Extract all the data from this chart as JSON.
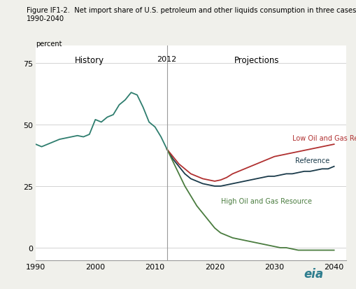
{
  "title_line1": "Figure IF1-2.  Net import share of U.S. petroleum and other liquids consumption in three cases,",
  "title_line2": "1990-2040",
  "ylabel": "percent",
  "history_label": "History",
  "projections_label": "Projections",
  "divider_year": 2012,
  "divider_label": "2012",
  "xlim": [
    1990,
    2042
  ],
  "ylim": [
    -5,
    82
  ],
  "yticks": [
    0,
    25,
    50,
    75
  ],
  "xticks": [
    1990,
    2000,
    2010,
    2020,
    2030,
    2040
  ],
  "bg_color": "#f0f0eb",
  "plot_bg_color": "#ffffff",
  "history_color": "#2e7d6e",
  "reference_color": "#1a3a4a",
  "low_color": "#b03030",
  "high_color": "#4a7c3f",
  "history_years": [
    1990,
    1991,
    1992,
    1993,
    1994,
    1995,
    1996,
    1997,
    1998,
    1999,
    2000,
    2001,
    2002,
    2003,
    2004,
    2005,
    2006,
    2007,
    2008,
    2009,
    2010,
    2011,
    2012
  ],
  "history_values": [
    42,
    41,
    42,
    43,
    44,
    44.5,
    45,
    45.5,
    45,
    46,
    52,
    51,
    53,
    54,
    58,
    60,
    63,
    62,
    57,
    51,
    49,
    45,
    40
  ],
  "proj_years": [
    2012,
    2013,
    2014,
    2015,
    2016,
    2017,
    2018,
    2019,
    2020,
    2021,
    2022,
    2023,
    2024,
    2025,
    2026,
    2027,
    2028,
    2029,
    2030,
    2031,
    2032,
    2033,
    2034,
    2035,
    2036,
    2037,
    2038,
    2039,
    2040
  ],
  "reference_values": [
    40,
    36,
    33,
    30,
    28,
    27,
    26,
    25.5,
    25,
    25,
    25.5,
    26,
    26.5,
    27,
    27.5,
    28,
    28.5,
    29,
    29,
    29.5,
    30,
    30,
    30.5,
    31,
    31,
    31.5,
    32,
    32,
    33
  ],
  "low_values": [
    40,
    37,
    34,
    32,
    30,
    29,
    28,
    27.5,
    27,
    27.5,
    28.5,
    30,
    31,
    32,
    33,
    34,
    35,
    36,
    37,
    37.5,
    38,
    38.5,
    39,
    39.5,
    40,
    40.5,
    41,
    41.5,
    42
  ],
  "high_values": [
    40,
    35,
    30,
    25,
    21,
    17,
    14,
    11,
    8,
    6,
    5,
    4,
    3.5,
    3,
    2.5,
    2,
    1.5,
    1,
    0.5,
    0,
    0,
    -0.5,
    -1,
    -1,
    -1,
    -1,
    -1,
    -1,
    -1
  ],
  "low_label": "Low Oil and Gas Resource",
  "reference_label": "Reference",
  "high_label": "High Oil and Gas Resource"
}
